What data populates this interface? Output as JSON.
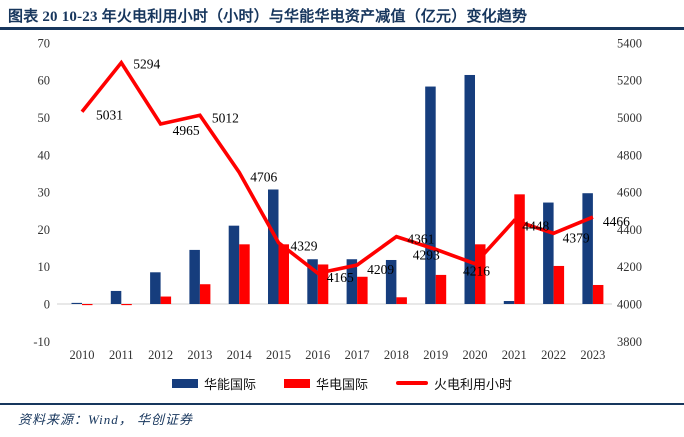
{
  "title": "图表 20  10-23 年火电利用小时（小时）与华能华电资产减值（亿元）变化趋势",
  "source_note": "资料来源：Wind， 华创证券",
  "colors": {
    "navy_text": "#17365D",
    "bar_blue": "#163D7D",
    "bar_red": "#FF0000",
    "line_red": "#FF0000",
    "zero_line_gray": "#D9D9D9",
    "label_black": "#000000",
    "axis_text": "#333333"
  },
  "legend": {
    "items": [
      {
        "label": "华能国际",
        "type": "bar",
        "color": "#163D7D"
      },
      {
        "label": "华电国际",
        "type": "bar",
        "color": "#FF0000"
      },
      {
        "label": "火电利用小时",
        "type": "line",
        "color": "#FF0000"
      }
    ]
  },
  "chart_data": {
    "type": "bar",
    "subtype": "combo-bar-line",
    "title": "10-23 年火电利用小时（小时）与华能华电资产减值（亿元）变化趋势",
    "categories": [
      "2010",
      "2011",
      "2012",
      "2013",
      "2014",
      "2015",
      "2016",
      "2017",
      "2018",
      "2019",
      "2020",
      "2021",
      "2022",
      "2023"
    ],
    "series": [
      {
        "name": "华能国际",
        "type": "bar",
        "axis": "left",
        "values": [
          0.3,
          3.5,
          8.5,
          14.5,
          21,
          30.7,
          12,
          12,
          11.8,
          58.3,
          61.4,
          0.8,
          27.2,
          29.7
        ]
      },
      {
        "name": "华电国际",
        "type": "bar",
        "axis": "left",
        "values": [
          -0.3,
          -0.3,
          2,
          5.3,
          16,
          16,
          10.6,
          7.3,
          1.8,
          7.8,
          16,
          29.4,
          10.2,
          5.1
        ]
      },
      {
        "name": "火电利用小时",
        "type": "line",
        "axis": "right",
        "labeled": true,
        "values": [
          5031,
          5294,
          4965,
          5012,
          4706,
          4329,
          4165,
          4209,
          4361,
          4293,
          4216,
          4448,
          4379,
          4466
        ]
      }
    ],
    "left_axis": {
      "ticks": [
        70,
        60,
        50,
        40,
        30,
        20,
        10,
        0,
        -10
      ],
      "range": [
        -10,
        70
      ]
    },
    "right_axis": {
      "ticks": [
        5400,
        5200,
        5000,
        4800,
        4600,
        4400,
        4200,
        4000,
        3800
      ],
      "range": [
        3800,
        5400
      ]
    },
    "grid": false,
    "legend_position": "bottom",
    "xlabel": "",
    "ylabel_left": "",
    "ylabel_right": ""
  }
}
